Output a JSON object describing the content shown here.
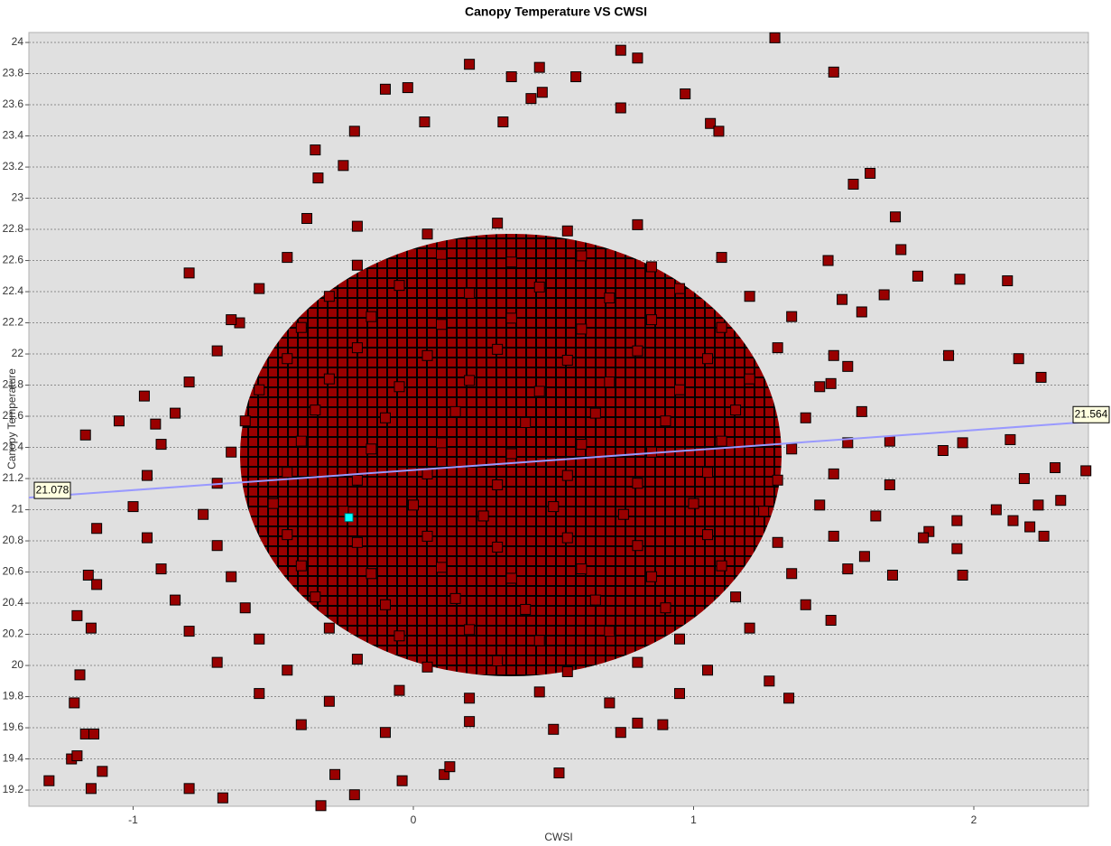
{
  "chart_data": {
    "type": "scatter",
    "title": "Canopy Temperature VS CWSI",
    "x_label": "CWSI",
    "y_label": "Canopy Temperature",
    "xlim": [
      -1.372,
      2.409
    ],
    "ylim": [
      19.096,
      24.064
    ],
    "xticks": [
      -1,
      0,
      1,
      2
    ],
    "yticks": [
      19.2,
      19.4,
      19.6,
      19.8,
      20,
      20.2,
      20.4,
      20.6,
      20.8,
      21,
      21.2,
      21.4,
      21.6,
      21.8,
      22,
      22.2,
      22.4,
      22.6,
      22.8,
      23,
      23.2,
      23.4,
      23.6,
      23.8,
      24
    ],
    "grid": true,
    "color": "#990000",
    "x": [
      1.29,
      1.5,
      0.74,
      0.2,
      0.8,
      0.45,
      0.35,
      0.58,
      -0.1,
      -0.02,
      0.97,
      0.42,
      0.46,
      0.74,
      1.06,
      1.09,
      -0.21,
      0.32,
      0.04,
      1.57,
      1.63,
      1.72,
      1.74,
      1.8,
      1.95,
      2.12,
      1.91,
      2.16,
      2.24,
      1.89,
      2.13,
      1.96,
      2.4,
      2.29,
      2.18,
      2.08,
      2.14,
      2.23,
      2.31,
      2.25,
      2.2,
      1.96,
      1.94,
      1.94,
      1.27,
      1.34,
      1.49,
      -1.3,
      -1.22,
      -1.2,
      -1.15,
      -0.8,
      -0.68,
      -0.33,
      -0.21,
      -0.04,
      -1.17,
      -1.14,
      -1.11,
      -1.21,
      -1.19,
      -1.2,
      -1.15,
      -1.16,
      -1.13,
      -1.13,
      -1.17,
      -1.05,
      -0.96,
      -0.92,
      -0.8,
      -0.62,
      -0.38,
      -0.35,
      -0.25,
      -0.34,
      -0.28,
      0.11,
      0.13,
      0.52,
      0.74,
      0.89,
      1.49,
      1.55,
      1.7,
      1.71,
      1.55,
      1.61,
      1.84,
      1.82,
      1.6,
      1.68,
      1.48,
      1.53,
      -0.2,
      0.05,
      0.3,
      0.55,
      0.8,
      -0.45,
      -0.2,
      0.1,
      0.35,
      0.6,
      0.85,
      1.1,
      -0.55,
      -0.3,
      -0.05,
      0.2,
      0.45,
      0.7,
      0.95,
      1.2,
      -0.65,
      -0.4,
      -0.15,
      0.1,
      0.35,
      0.6,
      0.85,
      1.1,
      1.35,
      -0.7,
      -0.45,
      -0.2,
      0.05,
      0.3,
      0.55,
      0.8,
      1.05,
      1.3,
      1.5,
      -0.8,
      -0.55,
      -0.3,
      -0.05,
      0.2,
      0.45,
      0.7,
      0.95,
      1.2,
      1.45,
      -0.85,
      -0.6,
      -0.35,
      -0.1,
      0.15,
      0.4,
      0.65,
      0.9,
      1.15,
      1.4,
      1.6,
      -0.9,
      -0.65,
      -0.4,
      -0.15,
      0.1,
      0.35,
      0.6,
      0.85,
      1.1,
      1.35,
      1.55,
      -0.95,
      -0.7,
      -0.45,
      -0.2,
      0.05,
      0.3,
      0.55,
      0.8,
      1.05,
      1.3,
      1.5,
      1.7,
      -1.0,
      -0.75,
      -0.5,
      -0.25,
      0,
      0.25,
      0.5,
      0.75,
      1,
      1.25,
      1.45,
      1.65,
      -0.95,
      -0.7,
      -0.45,
      -0.2,
      0.05,
      0.3,
      0.55,
      0.8,
      1.05,
      1.3,
      1.5,
      -0.9,
      -0.65,
      -0.4,
      -0.15,
      0.1,
      0.35,
      0.6,
      0.85,
      1.1,
      1.35,
      -0.85,
      -0.6,
      -0.35,
      -0.1,
      0.15,
      0.4,
      0.65,
      0.9,
      1.15,
      1.4,
      -0.8,
      -0.55,
      -0.3,
      -0.05,
      0.2,
      0.45,
      0.7,
      0.95,
      1.2,
      -0.7,
      -0.45,
      -0.2,
      0.05,
      0.3,
      0.55,
      0.8,
      1.05,
      -0.55,
      -0.3,
      -0.05,
      0.2,
      0.45,
      0.7,
      0.95,
      -0.4,
      -0.1,
      0.2,
      0.5,
      0.8
    ],
    "values": [
      24.03,
      23.81,
      23.95,
      23.86,
      23.9,
      23.84,
      23.78,
      23.78,
      23.7,
      23.71,
      23.67,
      23.64,
      23.68,
      23.58,
      23.48,
      23.43,
      23.43,
      23.49,
      23.49,
      23.09,
      23.16,
      22.88,
      22.67,
      22.5,
      22.48,
      22.47,
      21.99,
      21.97,
      21.85,
      21.38,
      21.45,
      21.43,
      21.25,
      21.27,
      21.2,
      21,
      20.93,
      21.03,
      21.06,
      20.83,
      20.89,
      20.58,
      20.75,
      20.93,
      19.9,
      19.79,
      20.29,
      19.26,
      19.4,
      19.42,
      19.21,
      19.21,
      19.15,
      19.1,
      19.17,
      19.26,
      19.56,
      19.56,
      19.32,
      19.76,
      19.94,
      20.32,
      20.24,
      20.58,
      20.52,
      20.88,
      21.48,
      21.57,
      21.73,
      21.55,
      22.52,
      22.2,
      22.87,
      23.31,
      23.21,
      23.13,
      19.3,
      19.3,
      19.35,
      19.31,
      19.57,
      19.62,
      21.81,
      21.92,
      21.44,
      20.58,
      20.62,
      20.7,
      20.86,
      20.82,
      22.27,
      22.38,
      22.6,
      22.35,
      22.82,
      22.77,
      22.84,
      22.79,
      22.83,
      22.62,
      22.57,
      22.64,
      22.59,
      22.63,
      22.56,
      22.62,
      22.42,
      22.37,
      22.44,
      22.39,
      22.43,
      22.36,
      22.42,
      22.37,
      22.22,
      22.17,
      22.24,
      22.19,
      22.23,
      22.16,
      22.22,
      22.17,
      22.24,
      22.02,
      21.97,
      22.04,
      21.99,
      22.03,
      21.96,
      22.02,
      21.97,
      22.04,
      21.99,
      21.82,
      21.77,
      21.84,
      21.79,
      21.83,
      21.76,
      21.82,
      21.77,
      21.84,
      21.79,
      21.62,
      21.57,
      21.64,
      21.59,
      21.63,
      21.56,
      21.62,
      21.57,
      21.64,
      21.59,
      21.63,
      21.42,
      21.37,
      21.44,
      21.39,
      21.43,
      21.36,
      21.42,
      21.37,
      21.44,
      21.39,
      21.43,
      21.22,
      21.17,
      21.24,
      21.19,
      21.23,
      21.16,
      21.22,
      21.17,
      21.24,
      21.19,
      21.23,
      21.16,
      21.02,
      20.97,
      21.04,
      20.99,
      21.03,
      20.96,
      21.02,
      20.97,
      21.04,
      20.99,
      21.03,
      20.96,
      20.82,
      20.77,
      20.84,
      20.79,
      20.83,
      20.76,
      20.82,
      20.77,
      20.84,
      20.79,
      20.83,
      20.62,
      20.57,
      20.64,
      20.59,
      20.63,
      20.56,
      20.62,
      20.57,
      20.64,
      20.59,
      20.42,
      20.37,
      20.44,
      20.39,
      20.43,
      20.36,
      20.42,
      20.37,
      20.44,
      20.39,
      20.22,
      20.17,
      20.24,
      20.19,
      20.23,
      20.16,
      20.22,
      20.17,
      20.24,
      20.02,
      19.97,
      20.04,
      19.99,
      20.03,
      19.96,
      20.02,
      19.97,
      19.82,
      19.77,
      19.84,
      19.79,
      19.83,
      19.76,
      19.82,
      19.62,
      19.57,
      19.64,
      19.59,
      19.63
    ],
    "highlight": {
      "x": -0.23,
      "y": 20.95,
      "color": "#00ffff"
    },
    "trend_line": {
      "values": [
        21.078,
        21.564
      ],
      "color": "#9999ff"
    }
  }
}
